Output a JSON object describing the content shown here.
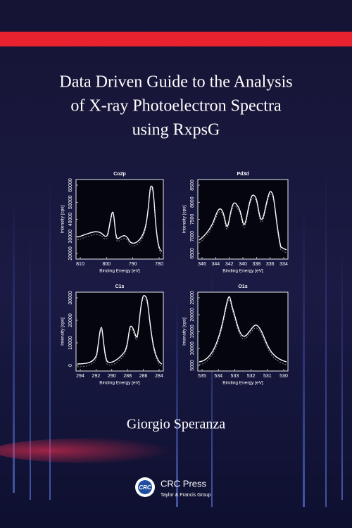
{
  "title": [
    "Data Driven Guide to the Analysis",
    "of X-ray Photoelectron Spectra",
    "using RxpsG"
  ],
  "plots": [
    {
      "title": "Co2p",
      "xlabel": "Binding Energy [eV]",
      "ylabel": "Intensity [cps]",
      "xticks": [
        810,
        800,
        790,
        780
      ],
      "yticks": [
        20000,
        30000,
        40000,
        50000,
        60000
      ]
    },
    {
      "title": "Pd3d",
      "xlabel": "Binding Energy [eV]",
      "ylabel": "Intensity [cps]",
      "xticks": [
        346,
        344,
        342,
        340,
        338,
        336,
        334
      ],
      "yticks": [
        6500,
        7000,
        7500,
        8000,
        8500
      ]
    },
    {
      "title": "C1s",
      "xlabel": "Binding Energy [eV]",
      "ylabel": "Intensity [cps]",
      "xticks": [
        294,
        292,
        290,
        288,
        286,
        284
      ],
      "yticks": [
        0,
        10000,
        20000,
        30000
      ]
    },
    {
      "title": "O1s",
      "xlabel": "Binding Energy [eV]",
      "ylabel": "Intensity [cps]",
      "xticks": [
        535,
        534,
        533,
        532,
        531,
        530
      ],
      "yticks": [
        5000,
        10000,
        15000,
        20000,
        25000
      ]
    }
  ],
  "author": "Giorgio Speranza",
  "publisher": {
    "logo": "CRC",
    "name": "CRC Press",
    "group": "Taylor & Francis Group"
  }
}
